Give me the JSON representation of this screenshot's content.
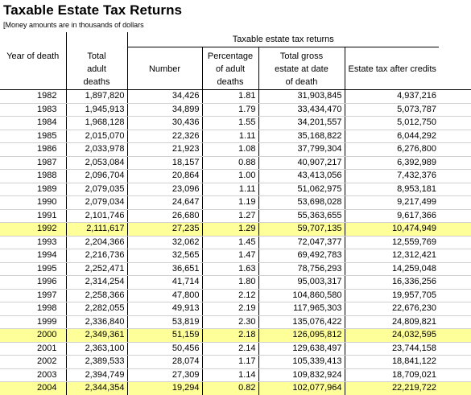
{
  "title": "Taxable Estate Tax Returns",
  "note": "[Money amounts are in thousands of dollars",
  "group_header": "Taxable estate tax returns",
  "columns": {
    "year": "Year of death",
    "adult_deaths": [
      "Total",
      "adult",
      "deaths"
    ],
    "number": "Number",
    "pct": [
      "Percentage",
      "of adult",
      "deaths"
    ],
    "gross": [
      "Total gross",
      "estate at date",
      "of death"
    ],
    "tax": "Estate tax after credits"
  },
  "highlight_color": "#ffff99",
  "rows": [
    {
      "year": "1982",
      "deaths": "1,897,820",
      "number": "34,426",
      "pct": "1.81",
      "gross": "31,903,845",
      "tax": "4,937,216",
      "hl": false
    },
    {
      "year": "1983",
      "deaths": "1,945,913",
      "number": "34,899",
      "pct": "1.79",
      "gross": "33,434,470",
      "tax": "5,073,787",
      "hl": false
    },
    {
      "year": "1984",
      "deaths": "1,968,128",
      "number": "30,436",
      "pct": "1.55",
      "gross": "34,201,557",
      "tax": "5,012,750",
      "hl": false
    },
    {
      "year": "1985",
      "deaths": "2,015,070",
      "number": "22,326",
      "pct": "1.11",
      "gross": "35,168,822",
      "tax": "6,044,292",
      "hl": false
    },
    {
      "year": "1986",
      "deaths": "2,033,978",
      "number": "21,923",
      "pct": "1.08",
      "gross": "37,799,304",
      "tax": "6,276,800",
      "hl": false
    },
    {
      "year": "1987",
      "deaths": "2,053,084",
      "number": "18,157",
      "pct": "0.88",
      "gross": "40,907,217",
      "tax": "6,392,989",
      "hl": false
    },
    {
      "year": "1988",
      "deaths": "2,096,704",
      "number": "20,864",
      "pct": "1.00",
      "gross": "43,413,056",
      "tax": "7,432,376",
      "hl": false
    },
    {
      "year": "1989",
      "deaths": "2,079,035",
      "number": "23,096",
      "pct": "1.11",
      "gross": "51,062,975",
      "tax": "8,953,181",
      "hl": false
    },
    {
      "year": "1990",
      "deaths": "2,079,034",
      "number": "24,647",
      "pct": "1.19",
      "gross": "53,698,028",
      "tax": "9,217,499",
      "hl": false
    },
    {
      "year": "1991",
      "deaths": "2,101,746",
      "number": "26,680",
      "pct": "1.27",
      "gross": "55,363,655",
      "tax": "9,617,366",
      "hl": false
    },
    {
      "year": "1992",
      "deaths": "2,111,617",
      "number": "27,235",
      "pct": "1.29",
      "gross": "59,707,135",
      "tax": "10,474,949",
      "hl": true
    },
    {
      "year": "1993",
      "deaths": "2,204,366",
      "number": "32,062",
      "pct": "1.45",
      "gross": "72,047,377",
      "tax": "12,559,769",
      "hl": false
    },
    {
      "year": "1994",
      "deaths": "2,216,736",
      "number": "32,565",
      "pct": "1.47",
      "gross": "69,492,783",
      "tax": "12,312,421",
      "hl": false
    },
    {
      "year": "1995",
      "deaths": "2,252,471",
      "number": "36,651",
      "pct": "1.63",
      "gross": "78,756,293",
      "tax": "14,259,048",
      "hl": false
    },
    {
      "year": "1996",
      "deaths": "2,314,254",
      "number": "41,714",
      "pct": "1.80",
      "gross": "95,003,317",
      "tax": "16,336,256",
      "hl": false
    },
    {
      "year": "1997",
      "deaths": "2,258,366",
      "number": "47,800",
      "pct": "2.12",
      "gross": "104,860,580",
      "tax": "19,957,705",
      "hl": false
    },
    {
      "year": "1998",
      "deaths": "2,282,055",
      "number": "49,913",
      "pct": "2.19",
      "gross": "117,965,303",
      "tax": "22,676,230",
      "hl": false
    },
    {
      "year": "1999",
      "deaths": "2,336,840",
      "number": "53,819",
      "pct": "2.30",
      "gross": "135,076,422",
      "tax": "24,809,821",
      "hl": false
    },
    {
      "year": "2000",
      "deaths": "2,349,361",
      "number": "51,159",
      "pct": "2.18",
      "gross": "126,095,812",
      "tax": "24,032,595",
      "hl": true
    },
    {
      "year": "2001",
      "deaths": "2,363,100",
      "number": "50,456",
      "pct": "2.14",
      "gross": "129,638,497",
      "tax": "23,744,158",
      "hl": false
    },
    {
      "year": "2002",
      "deaths": "2,389,533",
      "number": "28,074",
      "pct": "1.17",
      "gross": "105,339,413",
      "tax": "18,841,122",
      "hl": false
    },
    {
      "year": "2003",
      "deaths": "2,394,749",
      "number": "27,309",
      "pct": "1.14",
      "gross": "109,832,924",
      "tax": "18,709,021",
      "hl": false
    },
    {
      "year": "2004",
      "deaths": "2,344,354",
      "number": "19,294",
      "pct": "0.82",
      "gross": "102,077,964",
      "tax": "22,219,722",
      "hl": true
    }
  ]
}
